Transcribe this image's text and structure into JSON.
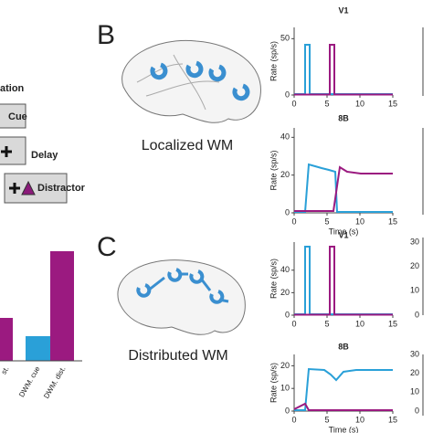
{
  "left_panel": {
    "heading": "ation",
    "steps": [
      "Cue",
      "Delay",
      "Distractor"
    ],
    "bar_labels": [
      "st.",
      "DWM. cue",
      "DWM. dist."
    ]
  },
  "panel_b": {
    "label": "B",
    "caption": "Localized WM",
    "plots": [
      {
        "title": "V1",
        "y_label": "Rate (sp/s)",
        "yticks": [
          0,
          50
        ],
        "xticks": [
          0,
          5,
          10,
          15
        ]
      },
      {
        "title": "8B",
        "y_label": "Rate (sp/s)",
        "yticks": [
          0,
          20,
          40
        ],
        "xticks": [
          0,
          5,
          10,
          15
        ],
        "x_label": "Time (s)"
      }
    ]
  },
  "panel_c": {
    "label": "C",
    "caption": "Distributed WM",
    "plots": [
      {
        "title": "V1",
        "y_label": "Rate (sp/s)",
        "yticks": [
          0,
          20,
          40
        ],
        "xticks": [
          0,
          5,
          10,
          15
        ]
      },
      {
        "title": "8B",
        "y_label": "Rate (sp/s)",
        "yticks": [
          0,
          10,
          20
        ],
        "xticks": [
          0,
          5,
          10,
          15
        ],
        "x_label": "Time (s)"
      }
    ],
    "cropped_ticks": [
      [
        0,
        10,
        20,
        30
      ],
      [
        0,
        10,
        20,
        30
      ]
    ]
  }
}
